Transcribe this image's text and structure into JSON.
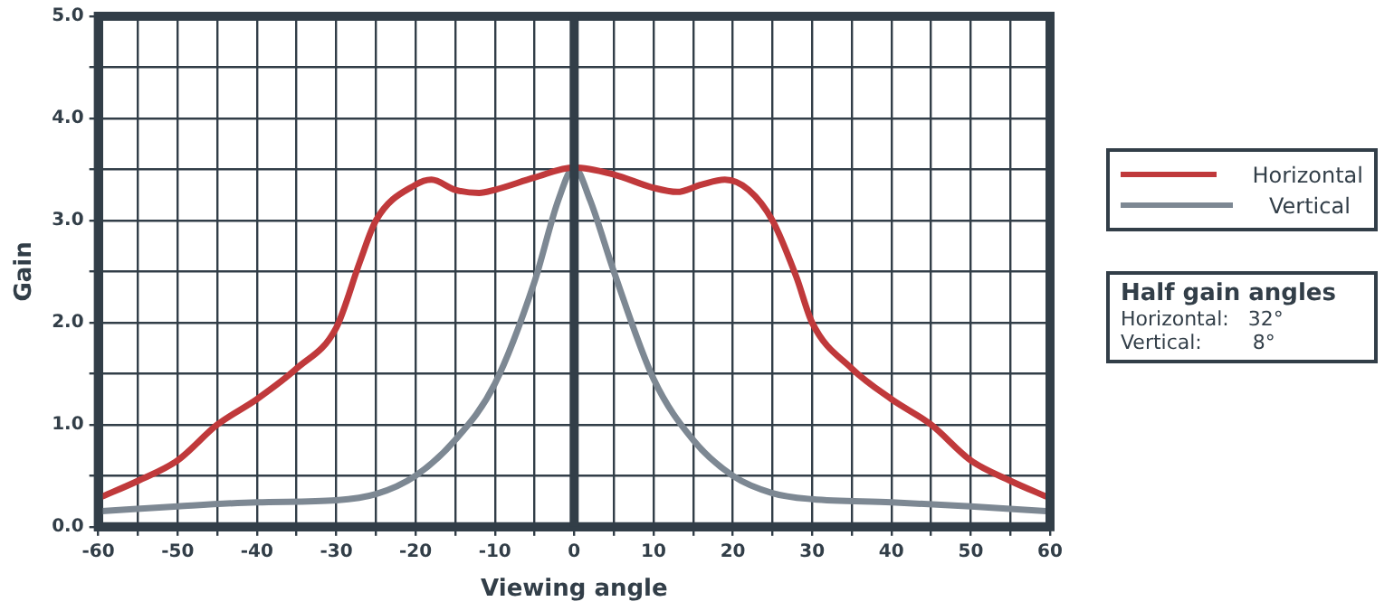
{
  "chart_data": {
    "type": "line",
    "xlabel": "Viewing angle",
    "ylabel": "Gain",
    "xlim": [
      -60,
      60
    ],
    "ylim": [
      0,
      5
    ],
    "xticks": [
      -60,
      {
        "value": -55,
        "label": null
      },
      -50,
      {
        "value": -45,
        "label": null
      },
      -40,
      {
        "value": -35,
        "label": null
      },
      -30,
      {
        "value": -25,
        "label": null
      },
      -20,
      {
        "value": -15,
        "label": null
      },
      -10,
      {
        "value": -5,
        "label": null
      },
      0,
      {
        "value": 5,
        "label": null
      },
      10,
      {
        "value": 15,
        "label": null
      },
      20,
      {
        "value": 25,
        "label": null
      },
      30,
      {
        "value": 35,
        "label": null
      },
      40,
      {
        "value": 45,
        "label": null
      },
      50,
      {
        "value": 55,
        "label": null
      },
      60
    ],
    "yticks": [
      {
        "value": 0,
        "label": "0.0"
      },
      {
        "value": 0.5,
        "label": null
      },
      {
        "value": 1,
        "label": "1.0"
      },
      {
        "value": 1.5,
        "label": null
      },
      {
        "value": 2,
        "label": "2.0"
      },
      {
        "value": 2.5,
        "label": null
      },
      {
        "value": 3,
        "label": "3.0"
      },
      {
        "value": 3.5,
        "label": null
      },
      {
        "value": 4,
        "label": "4.0"
      },
      {
        "value": 4.5,
        "label": null
      },
      {
        "value": 5,
        "label": "5.0"
      }
    ],
    "grid": true,
    "legend": "right",
    "marker": "none",
    "line_style": "solid",
    "ref_lines": [
      {
        "axis": "x",
        "value": 0,
        "label": null,
        "color": "#323e48"
      }
    ],
    "series": [
      {
        "name": "Horizontal",
        "color": "#c0393b",
        "x": [
          -60,
          -55,
          -50,
          -45,
          -40,
          -35,
          -30,
          -27,
          -25,
          -20,
          -18,
          -15,
          -12,
          -10,
          -5,
          0,
          5,
          10,
          13,
          16,
          19,
          22,
          25,
          28,
          30,
          35,
          40,
          45,
          50,
          55,
          60
        ],
        "values": [
          0.28,
          0.45,
          0.65,
          1.0,
          1.25,
          1.55,
          1.95,
          2.6,
          3.0,
          3.35,
          3.4,
          3.3,
          3.27,
          3.3,
          3.42,
          3.52,
          3.45,
          3.32,
          3.28,
          3.35,
          3.4,
          3.3,
          3.0,
          2.45,
          2.0,
          1.55,
          1.25,
          1.0,
          0.65,
          0.45,
          0.28
        ]
      },
      {
        "name": "Vertical",
        "color": "#7d8893",
        "x": [
          -60,
          -50,
          -40,
          -30,
          -25,
          -20,
          -15,
          -10,
          -5,
          -2,
          0,
          2,
          5,
          10,
          15,
          20,
          25,
          30,
          40,
          50,
          60
        ],
        "values": [
          0.15,
          0.2,
          0.24,
          0.26,
          0.32,
          0.5,
          0.85,
          1.4,
          2.4,
          3.2,
          3.52,
          3.2,
          2.5,
          1.45,
          0.85,
          0.5,
          0.33,
          0.27,
          0.24,
          0.2,
          0.15
        ]
      }
    ],
    "annotations": [
      "Half gain angles",
      "Horizontal:   32°",
      "Vertical:        8°"
    ]
  }
}
